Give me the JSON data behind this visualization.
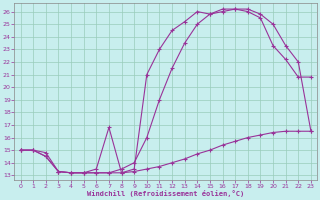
{
  "xlabel": "Windchill (Refroidissement éolien,°C)",
  "bg_color": "#c8eeee",
  "grid_color": "#99ccbb",
  "line_color": "#993399",
  "xlim": [
    -0.5,
    23.5
  ],
  "ylim": [
    12.6,
    26.7
  ],
  "xticks": [
    0,
    1,
    2,
    3,
    4,
    5,
    6,
    7,
    8,
    9,
    10,
    11,
    12,
    13,
    14,
    15,
    16,
    17,
    18,
    19,
    20,
    21,
    22,
    23
  ],
  "yticks": [
    13,
    14,
    15,
    16,
    17,
    18,
    19,
    20,
    21,
    22,
    23,
    24,
    25,
    26
  ],
  "curve1_x": [
    0,
    1,
    2,
    3,
    4,
    5,
    6,
    7,
    8,
    9,
    10,
    11,
    12,
    13,
    14,
    15,
    16,
    17,
    18,
    19,
    20,
    21,
    22,
    23
  ],
  "curve1_y": [
    15.0,
    15.0,
    14.8,
    13.3,
    13.2,
    13.2,
    13.2,
    13.2,
    13.2,
    13.3,
    13.5,
    13.7,
    14.0,
    14.3,
    14.7,
    15.0,
    15.4,
    15.7,
    16.0,
    16.2,
    16.4,
    16.5,
    16.5,
    16.5
  ],
  "curve2_x": [
    0,
    1,
    2,
    3,
    4,
    5,
    6,
    7,
    8,
    9,
    10,
    11,
    12,
    13,
    14,
    15,
    16,
    17,
    18,
    19,
    20,
    21,
    22,
    23
  ],
  "curve2_y": [
    15.0,
    15.0,
    14.5,
    13.3,
    13.2,
    13.2,
    13.2,
    13.2,
    13.5,
    14.0,
    16.0,
    19.0,
    21.5,
    23.5,
    25.0,
    25.8,
    26.0,
    26.2,
    26.2,
    25.8,
    25.0,
    23.3,
    22.0,
    16.5
  ],
  "curve3_x": [
    0,
    1,
    2,
    3,
    4,
    5,
    6,
    7,
    8,
    9,
    10,
    11,
    12,
    13,
    14,
    15,
    16,
    17,
    18,
    19,
    20,
    21,
    22,
    23
  ],
  "curve3_y": [
    15.0,
    15.0,
    14.5,
    13.3,
    13.2,
    13.2,
    13.5,
    16.8,
    13.2,
    13.5,
    21.0,
    23.0,
    24.5,
    25.2,
    26.0,
    25.8,
    26.2,
    26.2,
    26.0,
    25.5,
    23.3,
    22.2,
    20.8,
    20.8
  ]
}
